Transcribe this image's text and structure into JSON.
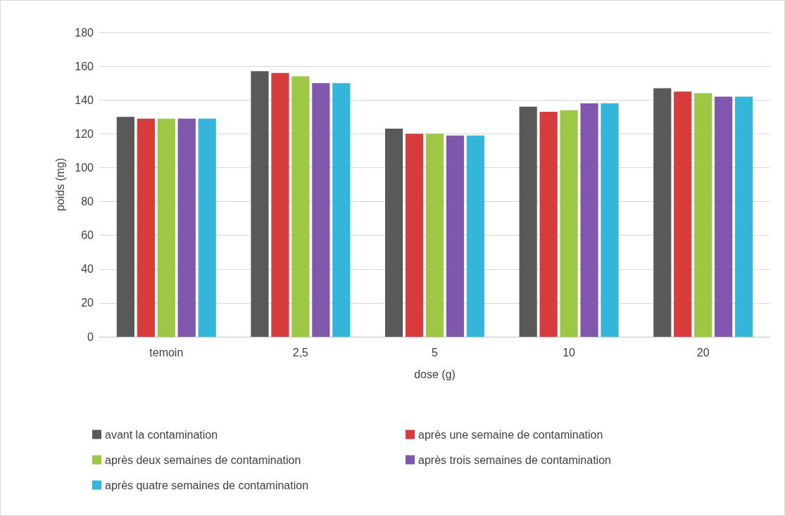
{
  "chart_data": {
    "type": "bar",
    "xlabel": "dose (g)",
    "ylabel": "poids (mg)",
    "categories": [
      "temoin",
      "2,5",
      "5",
      "10",
      "20"
    ],
    "series": [
      {
        "name": "avant la contamination",
        "color": "#595959",
        "values": [
          130,
          157,
          123,
          136,
          147
        ]
      },
      {
        "name": "après une semaine de contamination",
        "color": "#d63c3c",
        "values": [
          129,
          156,
          120,
          133,
          145
        ]
      },
      {
        "name": "après deux semaines de contamination",
        "color": "#9dc744",
        "values": [
          129,
          154,
          120,
          134,
          144
        ]
      },
      {
        "name": "après trois semaines de contamination",
        "color": "#7f57ac",
        "values": [
          129,
          150,
          119,
          138,
          142
        ]
      },
      {
        "name": "après quatre semaines de contamination",
        "color": "#33b6d9",
        "values": [
          129,
          150,
          119,
          138,
          142
        ]
      }
    ],
    "ylim": [
      0,
      180
    ],
    "yticks": [
      0,
      20,
      40,
      60,
      80,
      100,
      120,
      140,
      160,
      180
    ],
    "grid": "y",
    "legend": "bottom"
  }
}
